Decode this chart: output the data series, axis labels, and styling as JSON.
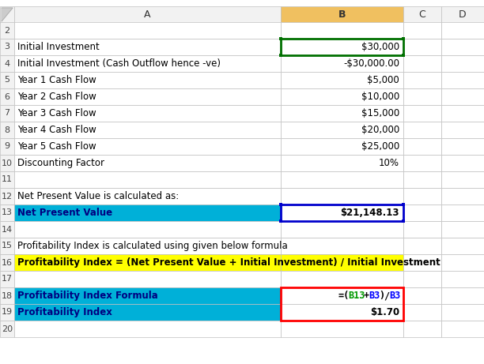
{
  "fig_width": 6.12,
  "fig_height": 4.61,
  "bg_color": "#ffffff",
  "grid_line_color": "#c0c0c0",
  "col_header_bg": "#f2f2f2",
  "col_B_header_bg": "#f0c060",
  "row_header_bg": "#f2f2f2",
  "rows": {
    "2": {
      "A": "",
      "B": ""
    },
    "3": {
      "A": "Initial Investment",
      "B": "$30,000"
    },
    "4": {
      "A": "Initial Investment (Cash Outflow hence -ve)",
      "B": "-$30,000.00"
    },
    "5": {
      "A": "Year 1 Cash Flow",
      "B": "$5,000"
    },
    "6": {
      "A": "Year 2 Cash Flow",
      "B": "$10,000"
    },
    "7": {
      "A": "Year 3 Cash Flow",
      "B": "$15,000"
    },
    "8": {
      "A": "Year 4 Cash Flow",
      "B": "$20,000"
    },
    "9": {
      "A": "Year 5 Cash Flow",
      "B": "$25,000"
    },
    "10": {
      "A": "Discounting Factor",
      "B": "10%"
    },
    "11": {
      "A": "",
      "B": ""
    },
    "12": {
      "A": "Net Present Value is calculated as:",
      "B": ""
    },
    "13": {
      "A": "Net Present Value",
      "B": "$21,148.13"
    },
    "14": {
      "A": "",
      "B": ""
    },
    "15": {
      "A": "Profitability Index is calculated using given below formula",
      "B": ""
    },
    "16": {
      "A": "Profitability Index = (Net Present Value + Initial Investment) / Initial Investment",
      "B": ""
    },
    "17": {
      "A": "",
      "B": ""
    },
    "18": {
      "A": "Profitability Index Formula",
      "B": "=(B13+B3)/B3"
    },
    "19": {
      "A": "Profitability Index",
      "B": "$1.70"
    },
    "20": {
      "A": "",
      "B": ""
    }
  },
  "cyan_rows": [
    "13",
    "18",
    "19"
  ],
  "yellow_row": "16",
  "cyan_color": "#00b0d8",
  "yellow_color": "#ffff00",
  "cyan_text_color": "#000080",
  "border_green": "#007000",
  "border_blue": "#0000cc",
  "border_red": "#ff0000",
  "formula_parts": [
    [
      "=(",
      "#000000"
    ],
    [
      "B13",
      "#009900"
    ],
    [
      "+",
      "#000000"
    ],
    [
      "B3",
      "#0000ff"
    ],
    [
      ")",
      "#000000"
    ],
    [
      "/",
      "#000000"
    ],
    [
      "B3",
      "#0000ff"
    ]
  ]
}
